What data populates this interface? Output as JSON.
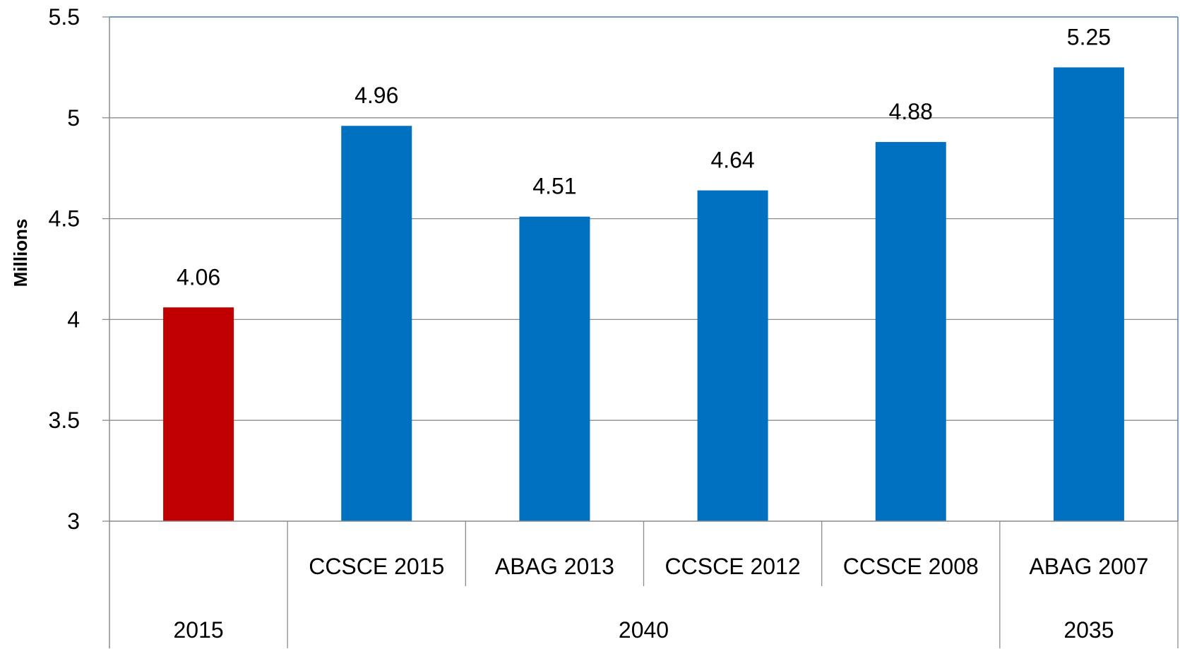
{
  "chart_data": {
    "type": "bar",
    "ylabel": "Millions",
    "xlabel": "",
    "title": "",
    "ylim": [
      3,
      5.5
    ],
    "yticks": [
      3,
      3.5,
      4,
      4.5,
      5,
      5.5
    ],
    "ytick_labels": [
      "3",
      "3.5",
      "4",
      "4.5",
      "5",
      "5.5"
    ],
    "grid": true,
    "bars": [
      {
        "label": "",
        "group": "2015",
        "value": 4.06,
        "value_label": "4.06",
        "color": "#C00000"
      },
      {
        "label": "CCSCE 2015",
        "group": "2040",
        "value": 4.96,
        "value_label": "4.96",
        "color": "#0070C0"
      },
      {
        "label": "ABAG 2013",
        "group": "2040",
        "value": 4.51,
        "value_label": "4.51",
        "color": "#0070C0"
      },
      {
        "label": "CCSCE 2012",
        "group": "2040",
        "value": 4.64,
        "value_label": "4.64",
        "color": "#0070C0"
      },
      {
        "label": "CCSCE 2008",
        "group": "2040",
        "value": 4.88,
        "value_label": "4.88",
        "color": "#0070C0"
      },
      {
        "label": "ABAG 2007",
        "group": "2035",
        "value": 5.25,
        "value_label": "5.25",
        "color": "#0070C0"
      }
    ],
    "groups": [
      {
        "label": "2015",
        "count": 1
      },
      {
        "label": "2040",
        "count": 4
      },
      {
        "label": "2035",
        "count": 1
      }
    ]
  }
}
